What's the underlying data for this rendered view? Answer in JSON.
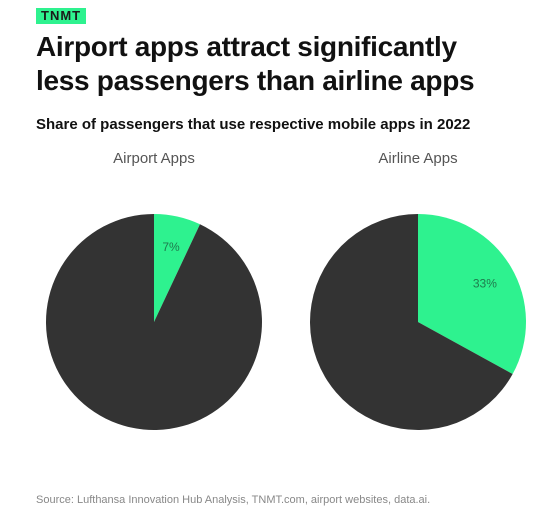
{
  "brand": "TNMT",
  "title_line1": "Airport apps attract significantly",
  "title_line2": "less passengers than airline apps",
  "subtitle": "Share of passengers that use respective mobile apps in 2022",
  "source": "Source: Lufthansa Innovation Hub Analysis, TNMT.com, airport websites, data.ai.",
  "colors": {
    "highlight": "#2ef28f",
    "rest": "#333333",
    "label": "#1f7a4d"
  },
  "chart_data": [
    {
      "type": "pie",
      "title": "Airport Apps",
      "slices": [
        {
          "label": "7%",
          "value": 7
        },
        {
          "label": "",
          "value": 93
        }
      ]
    },
    {
      "type": "pie",
      "title": "Airline Apps",
      "slices": [
        {
          "label": "33%",
          "value": 33
        },
        {
          "label": "",
          "value": 67
        }
      ]
    }
  ]
}
